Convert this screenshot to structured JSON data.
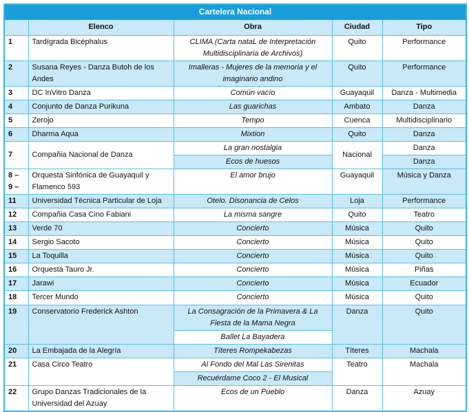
{
  "title": "Cartelera Nacional",
  "columns": {
    "num": "",
    "elenco": "Elenco",
    "obra": "Obra",
    "ciudad": "Ciudad",
    "tipo": "Tipo"
  },
  "colors": {
    "title_bar": "#189ED9",
    "row_shade": "#C9E8F8",
    "border": "#58BEE8"
  },
  "rows": [
    {
      "num": "1",
      "elenco": "Tardígrada Bicéphalus",
      "shade": false,
      "obras": [
        {
          "text": "CLIMA (Carta nataL de Interpretación Multidisciplinaria de Archivos)",
          "shade": false
        }
      ],
      "ciudad": {
        "text": "Quito",
        "shade": false
      },
      "tipo": {
        "text": "Performance",
        "shade": false
      }
    },
    {
      "num": "2",
      "elenco": "Susana Reyes - Danza Butoh de los Andes",
      "shade": true,
      "obras": [
        {
          "text": "Imalleras - Mujeres de la memoria y el imaginario andino",
          "shade": true
        }
      ],
      "ciudad": {
        "text": "Quito",
        "shade": true
      },
      "tipo": {
        "text": "Performance",
        "shade": true
      }
    },
    {
      "num": "3",
      "elenco": "DC InVitro Danza",
      "shade": false,
      "obras": [
        {
          "text": "Común vacío",
          "shade": false
        }
      ],
      "ciudad": {
        "text": "Guayaquil",
        "shade": false
      },
      "tipo": {
        "text": "Danza - Multimedia",
        "shade": false
      }
    },
    {
      "num": "4",
      "elenco": "Conjunto de Danza Purikuna",
      "shade": true,
      "obras": [
        {
          "text": "Las guarichas",
          "shade": true
        }
      ],
      "ciudad": {
        "text": "Ambato",
        "shade": true
      },
      "tipo": {
        "text": "Danza",
        "shade": true
      }
    },
    {
      "num": "5",
      "elenco": "Zerojo",
      "shade": false,
      "obras": [
        {
          "text": "Tempo",
          "shade": false
        }
      ],
      "ciudad": {
        "text": "Cuenca",
        "shade": false
      },
      "tipo": {
        "text": "Multidisciplinario",
        "shade": false
      }
    },
    {
      "num": "6",
      "elenco": "Dharma Aqua",
      "shade": true,
      "obras": [
        {
          "text": "Mixtion",
          "shade": true
        }
      ],
      "ciudad": {
        "text": "Quito",
        "shade": true
      },
      "tipo": {
        "text": "Danza",
        "shade": true
      }
    },
    {
      "num": "7",
      "elenco": "Compañia Nacional de Danza",
      "shade": false,
      "vmiddle": true,
      "obras": [
        {
          "text": "La gran nostalgia",
          "shade": false
        },
        {
          "text": "Ecos de huesos",
          "shade": true
        }
      ],
      "ciudad": {
        "text": "Nacional",
        "shade": false
      },
      "tipos": [
        {
          "text": "Danza",
          "shade": false
        },
        {
          "text": "Danza",
          "shade": true
        }
      ]
    },
    {
      "num": "8 –\n9 –",
      "elenco": "Orquesta Sinfónica de Guayaquil y Flamenco 593",
      "shade": false,
      "obras": [
        {
          "text": "El amor brujo",
          "shade": false
        }
      ],
      "ciudad": {
        "text": "Guayaquil",
        "shade": false
      },
      "tipo": {
        "text": "Música y Danza",
        "shade": true
      }
    },
    {
      "num": "11",
      "elenco": "Universidad Técnica Particular de Loja",
      "shade": true,
      "obras": [
        {
          "text": "Otelo. Disonancia de Celos",
          "shade": true
        }
      ],
      "ciudad": {
        "text": "Loja",
        "shade": true
      },
      "tipo": {
        "text": "Performance",
        "shade": true
      }
    },
    {
      "num": "12",
      "elenco": "Compañia Casa Cino Fabiani",
      "shade": false,
      "obras": [
        {
          "text": "La misma sangre",
          "shade": false
        }
      ],
      "ciudad": {
        "text": "Quito",
        "shade": false
      },
      "tipo": {
        "text": "Teatro",
        "shade": false
      }
    },
    {
      "num": "13",
      "elenco": "Verde 70",
      "shade": true,
      "obras": [
        {
          "text": "Concierto",
          "shade": true
        }
      ],
      "ciudad": {
        "text": "Música",
        "shade": true
      },
      "tipo": {
        "text": "Quito",
        "shade": true
      }
    },
    {
      "num": "14",
      "elenco": "Sergio Sacoto",
      "shade": false,
      "obras": [
        {
          "text": "Concierto",
          "shade": false
        }
      ],
      "ciudad": {
        "text": "Música",
        "shade": false
      },
      "tipo": {
        "text": "Quito",
        "shade": false
      }
    },
    {
      "num": "15",
      "elenco": "La Toquilla",
      "shade": true,
      "obras": [
        {
          "text": "Concierto",
          "shade": true
        }
      ],
      "ciudad": {
        "text": "Música",
        "shade": true
      },
      "tipo": {
        "text": "Quito",
        "shade": true
      }
    },
    {
      "num": "16",
      "elenco": "Orquesta Tauro Jr.",
      "shade": false,
      "obras": [
        {
          "text": "Concierto",
          "shade": false
        }
      ],
      "ciudad": {
        "text": "Música",
        "shade": false
      },
      "tipo": {
        "text": "Piñas",
        "shade": false
      }
    },
    {
      "num": "17",
      "elenco": "Jarawi",
      "shade": true,
      "obras": [
        {
          "text": "Concierto",
          "shade": true
        }
      ],
      "ciudad": {
        "text": "Música",
        "shade": true
      },
      "tipo": {
        "text": "Ecuador",
        "shade": true
      }
    },
    {
      "num": "18",
      "elenco": "Tercer Mundo",
      "shade": false,
      "obras": [
        {
          "text": "Concierto",
          "shade": false
        }
      ],
      "ciudad": {
        "text": "Música",
        "shade": false
      },
      "tipo": {
        "text": "Quito",
        "shade": false
      }
    },
    {
      "num": "19",
      "elenco": "Conservatorio Frederick Ashton",
      "shade": true,
      "obras": [
        {
          "text": "La Consagración de la Primavera & La Fiesta de la Mama Negra",
          "shade": true
        },
        {
          "text": "Ballet La Bayadera",
          "shade": false
        }
      ],
      "ciudad": {
        "text": "Danza",
        "shade": true
      },
      "tipo": {
        "text": "Quito",
        "shade": true
      }
    },
    {
      "num": "20",
      "elenco": "La Embajada de la Alegría",
      "shade": true,
      "obras": [
        {
          "text": "Títeres Rompekabezas",
          "shade": true
        }
      ],
      "ciudad": {
        "text": "Títeres",
        "shade": true
      },
      "tipo": {
        "text": "Machala",
        "shade": true
      }
    },
    {
      "num": "21",
      "elenco": "Casa Circo Teatro",
      "shade": false,
      "obras": [
        {
          "text": "Al Fondo del Mal Las Sirenitas",
          "shade": false
        },
        {
          "text": "Recuérdame Coco 2 - El Musical",
          "shade": true
        }
      ],
      "ciudad": {
        "text": "Teatro",
        "shade": false
      },
      "tipo": {
        "text": "Machala",
        "shade": false
      }
    },
    {
      "num": "22",
      "elenco": "Grupo Danzas Tradicionales de la Universidad del Azuay",
      "shade": false,
      "obras": [
        {
          "text": "Ecos de un Pueblo",
          "shade": false
        }
      ],
      "ciudad": {
        "text": "Danza",
        "shade": false
      },
      "tipo": {
        "text": "Azuay",
        "shade": false
      }
    }
  ]
}
